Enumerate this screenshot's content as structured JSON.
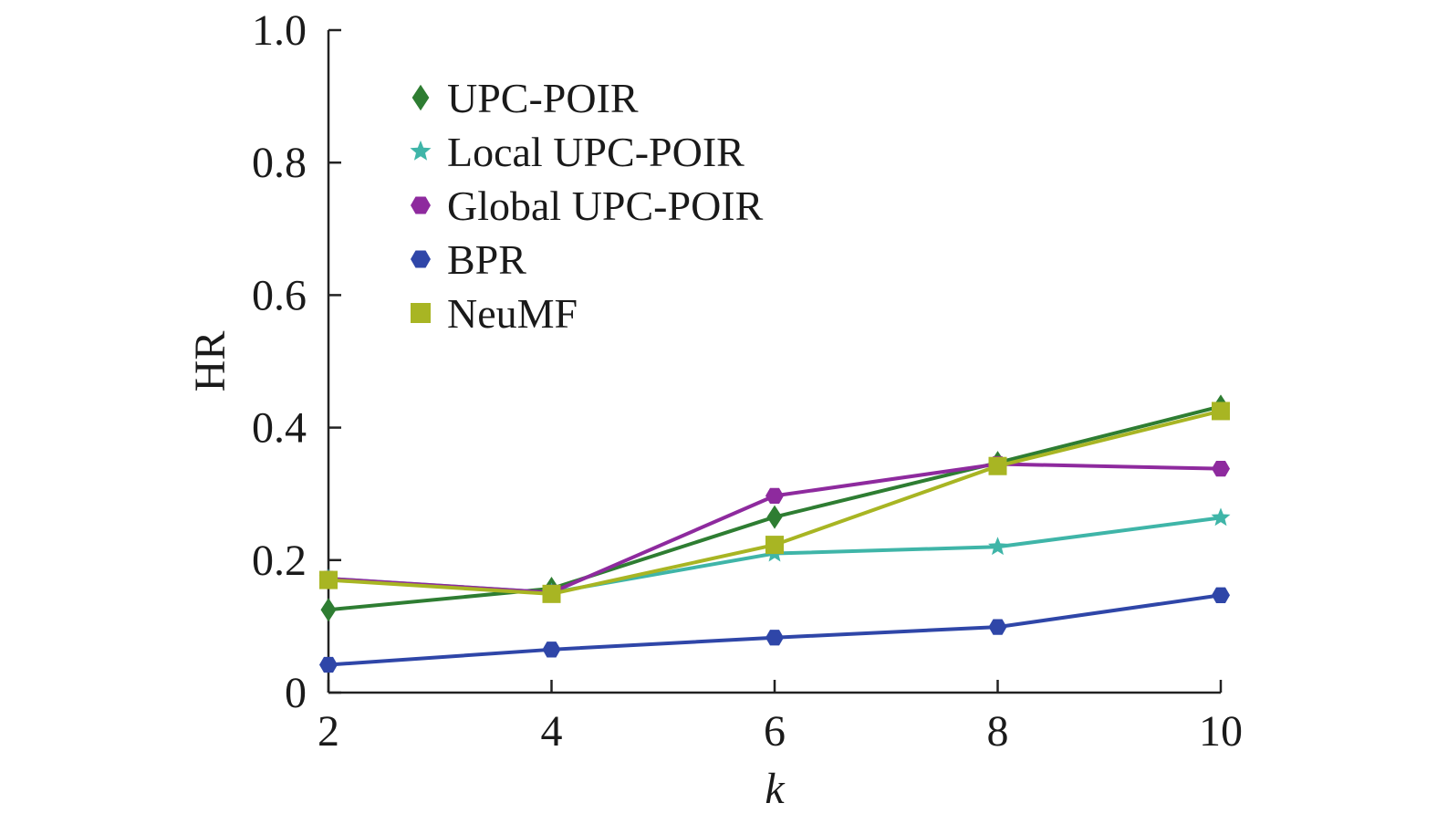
{
  "chart_data": {
    "type": "line",
    "xlabel": "k",
    "ylabel": "HR",
    "x": [
      2,
      4,
      6,
      8,
      10
    ],
    "xlim": [
      2,
      10
    ],
    "ylim": [
      0,
      1.0
    ],
    "x_ticks": [
      "2",
      "4",
      "6",
      "8",
      "10"
    ],
    "y_ticks": [
      {
        "value": 0,
        "label": "0"
      },
      {
        "value": 0.2,
        "label": "0.2"
      },
      {
        "value": 0.4,
        "label": "0.4"
      },
      {
        "value": 0.6,
        "label": "0.6"
      },
      {
        "value": 0.8,
        "label": "0.8"
      },
      {
        "value": 1.0,
        "label": "1.0"
      }
    ],
    "grid": false,
    "legend_position": "top-left",
    "series": [
      {
        "name": "UPC-POIR",
        "color": "#2e7d32",
        "marker": "diamond",
        "values": [
          0.125,
          0.157,
          0.265,
          0.347,
          0.432
        ]
      },
      {
        "name": "Local UPC-POIR",
        "color": "#3fb5a8",
        "marker": "star",
        "values": [
          0.172,
          0.151,
          0.21,
          0.22,
          0.264
        ]
      },
      {
        "name": "Global UPC-POIR",
        "color": "#8e2a9e",
        "marker": "hexagon",
        "values": [
          0.172,
          0.151,
          0.297,
          0.345,
          0.338
        ]
      },
      {
        "name": "BPR",
        "color": "#2f46a8",
        "marker": "hexagon",
        "values": [
          0.042,
          0.065,
          0.083,
          0.099,
          0.147
        ]
      },
      {
        "name": "NeuMF",
        "color": "#a8b523",
        "marker": "square",
        "values": [
          0.17,
          0.149,
          0.223,
          0.342,
          0.425
        ]
      }
    ]
  }
}
